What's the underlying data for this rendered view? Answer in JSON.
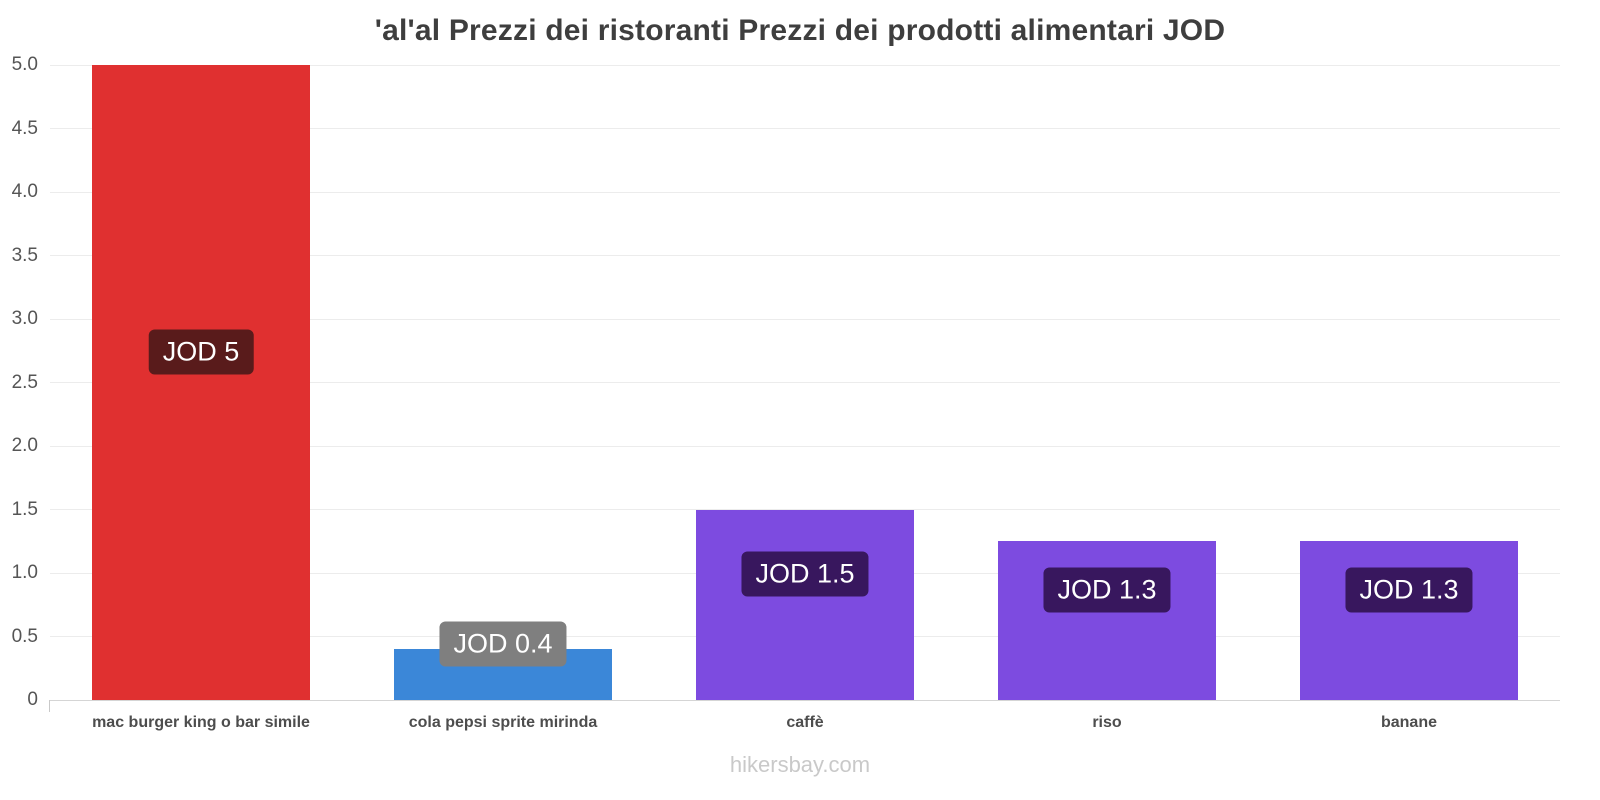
{
  "header": {
    "title": "'al'al Prezzi dei ristoranti Prezzi dei prodotti alimentari JOD"
  },
  "footer": {
    "text": "hikersbay.com"
  },
  "chart_data": {
    "type": "bar",
    "title": "'al'al Prezzi dei ristoranti Prezzi dei prodotti alimentari JOD",
    "categories": [
      "mac burger king o bar simile",
      "cola pepsi sprite mirinda",
      "caffè",
      "riso",
      "banane"
    ],
    "values": [
      5,
      0.4,
      1.5,
      1.25,
      1.25
    ],
    "value_labels": [
      "JOD 5",
      "JOD 0.4",
      "JOD 1.5",
      "JOD 1.3",
      "JOD 1.3"
    ],
    "bar_colors": [
      "#e03030",
      "#3b87d8",
      "#7d4be0",
      "#7d4be0",
      "#7d4be0"
    ],
    "value_label_bg": [
      "#591b1b",
      "#7f7f7f",
      "#38175e",
      "#38175e",
      "#38175e"
    ],
    "currency": "JOD",
    "xlabel": "",
    "ylabel": "",
    "ylim": [
      0,
      5
    ],
    "yticks": [
      0,
      0.5,
      1,
      1.5,
      2,
      2.5,
      3,
      3.5,
      4,
      4.5,
      5
    ],
    "grid": true,
    "legend": false,
    "watermark": "hikersbay.com"
  }
}
